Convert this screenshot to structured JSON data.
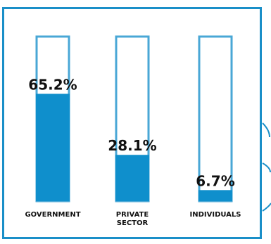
{
  "chart_data": {
    "type": "bar",
    "categories": [
      [
        "GOVERNMENT"
      ],
      [
        "PRIVATE",
        "SECTOR"
      ],
      [
        "INDIVIDUALS"
      ]
    ],
    "values": [
      65.2,
      28.1,
      6.7
    ],
    "value_labels": [
      "65.2%",
      "28.1%",
      "6.7%"
    ],
    "ylim": [
      0,
      100
    ],
    "grid": false,
    "legend": "none"
  },
  "colors": {
    "bar": "#0f8fcc",
    "track_outline": "#49a7d6",
    "frame": "#1a8fc8",
    "text": "#111111"
  }
}
